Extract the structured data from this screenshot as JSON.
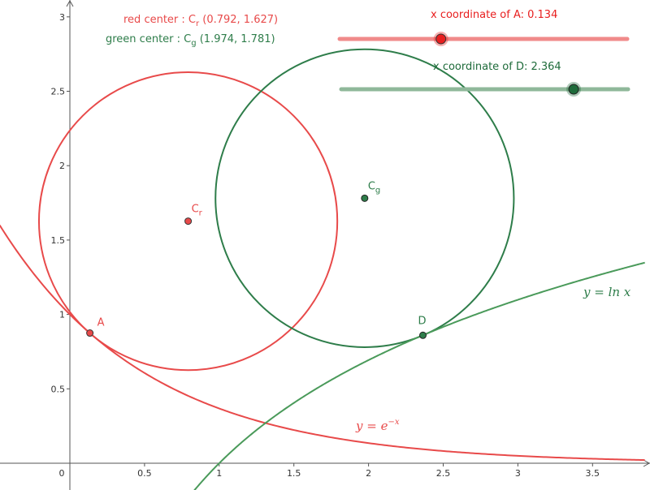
{
  "colors": {
    "red": "#e84a4a",
    "green": "#2e7d4a",
    "green_curve": "#4a9a5a",
    "axis": "#555555"
  },
  "info": {
    "red_center_prefix": "red center : C",
    "red_center_sub": "r",
    "red_center_coords": " (0.792, 1.627)",
    "green_center_prefix": "green center : C",
    "green_center_sub": "g",
    "green_center_coords": " (1.974, 1.781)"
  },
  "sliders": {
    "a": {
      "label": "x coordinate of A: 0.134",
      "position": 0.134
    },
    "d": {
      "label": "x coordinate of D: 2.364",
      "position": 2.364
    }
  },
  "points": {
    "A": {
      "label": "A",
      "x": 0.134,
      "y": 0.875
    },
    "D": {
      "label": "D",
      "x": 2.364,
      "y": 0.86
    },
    "Cr": {
      "label": "C",
      "sub": "r",
      "x": 0.792,
      "y": 1.627
    },
    "Cg": {
      "label": "C",
      "sub": "g",
      "x": 1.974,
      "y": 1.781
    }
  },
  "circles": {
    "red": {
      "cx": 0.792,
      "cy": 1.627,
      "r": 1.0
    },
    "green": {
      "cx": 1.974,
      "cy": 1.781,
      "r": 1.0
    }
  },
  "curve_labels": {
    "exp": "y = e^{-x}",
    "exp_base": "y = e",
    "exp_sup": "−x",
    "ln": "y = ln x"
  },
  "chart_data": {
    "type": "line",
    "xlim": [
      -0.47,
      3.85
    ],
    "ylim": [
      -0.16,
      3.1
    ],
    "x_ticks": [
      0,
      0.5,
      1,
      1.5,
      2,
      2.5,
      3,
      3.5
    ],
    "x_tick_labels": [
      "0",
      "0.5",
      "1",
      "1.5",
      "2",
      "2.5",
      "3",
      "3.5"
    ],
    "y_ticks": [
      0.5,
      1,
      1.5,
      2,
      2.5,
      3
    ],
    "y_tick_labels": [
      "0.5",
      "1",
      "1.5",
      "2",
      "2.5",
      "3"
    ],
    "grid": false,
    "series": [
      {
        "name": "y = e^{-x}",
        "function": "exp(-x)"
      },
      {
        "name": "y = ln x",
        "function": "ln(x)"
      }
    ]
  }
}
